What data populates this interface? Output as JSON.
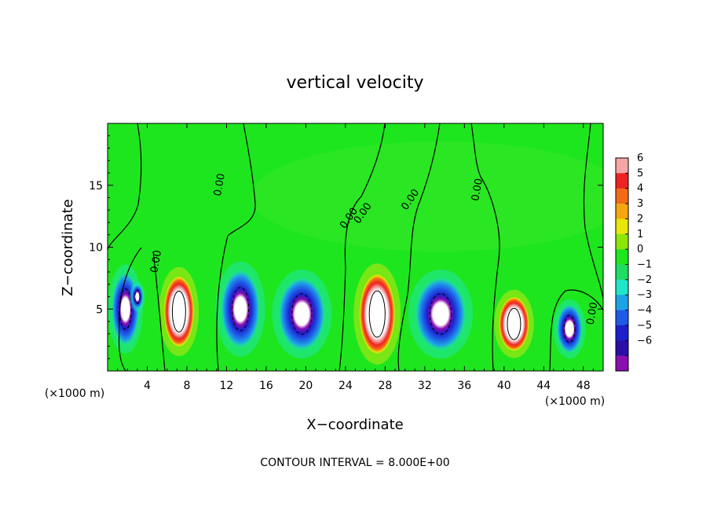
{
  "chart_data": {
    "type": "heatmap",
    "title": "vertical velocity",
    "xlabel": "X−coordinate",
    "ylabel": "Z−coordinate",
    "x_unit_left": "(×1000 m)",
    "x_unit_right": "(×1000 m)",
    "footer": "CONTOUR INTERVAL = 8.000E+00",
    "xlim": [
      0,
      50
    ],
    "ylim": [
      0,
      20
    ],
    "x_ticks": [
      "4",
      "8",
      "12",
      "16",
      "20",
      "24",
      "28",
      "32",
      "36",
      "40",
      "44",
      "48"
    ],
    "x_tick_values": [
      4,
      8,
      12,
      16,
      20,
      24,
      28,
      32,
      36,
      40,
      44,
      48
    ],
    "y_ticks": [
      "5",
      "10",
      "15"
    ],
    "y_tick_values": [
      5,
      10,
      15
    ],
    "contour_labels": [
      "0.00",
      "0.00",
      "0.00",
      "0.00",
      "0.00",
      "0.00",
      "0.00"
    ],
    "colorbar": {
      "labels": [
        "6",
        "5",
        "4",
        "3",
        "2",
        "1",
        "0",
        "−1",
        "−2",
        "−3",
        "−4",
        "−5",
        "−6"
      ],
      "values": [
        6,
        5,
        4,
        3,
        2,
        1,
        0,
        -1,
        -2,
        -3,
        -4,
        -5,
        -6
      ],
      "colors": [
        "#f4a6a6",
        "#ee2222",
        "#f46a16",
        "#f6a60e",
        "#e8e60a",
        "#8ce60a",
        "#1ee61e",
        "#1edc64",
        "#1ee6c6",
        "#1ea2e6",
        "#1e5ae6",
        "#1e1ecc",
        "#2a0ea6",
        "#8a0eb0"
      ]
    },
    "cells": [
      {
        "x": 1.8,
        "z": 5.0,
        "w": -5.5,
        "rx": 1.4,
        "rz": 3.0
      },
      {
        "x": 3.0,
        "z": 6.0,
        "w": -6.0,
        "rx": 0.6,
        "rz": 1.0
      },
      {
        "x": 7.2,
        "z": 4.8,
        "w": 7.5,
        "rx": 1.6,
        "rz": 3.0
      },
      {
        "x": 13.4,
        "z": 5.0,
        "w": -5.5,
        "rx": 2.0,
        "rz": 3.2
      },
      {
        "x": 19.6,
        "z": 4.6,
        "w": -7.5,
        "rx": 2.4,
        "rz": 3.0
      },
      {
        "x": 27.2,
        "z": 4.6,
        "w": 8.0,
        "rx": 1.9,
        "rz": 3.4
      },
      {
        "x": 33.6,
        "z": 4.6,
        "w": -7.0,
        "rx": 2.6,
        "rz": 3.0
      },
      {
        "x": 41.0,
        "z": 3.8,
        "w": 7.0,
        "rx": 1.6,
        "rz": 2.3
      },
      {
        "x": 46.6,
        "z": 3.4,
        "w": -6.5,
        "rx": 1.3,
        "rz": 2.0
      }
    ]
  }
}
